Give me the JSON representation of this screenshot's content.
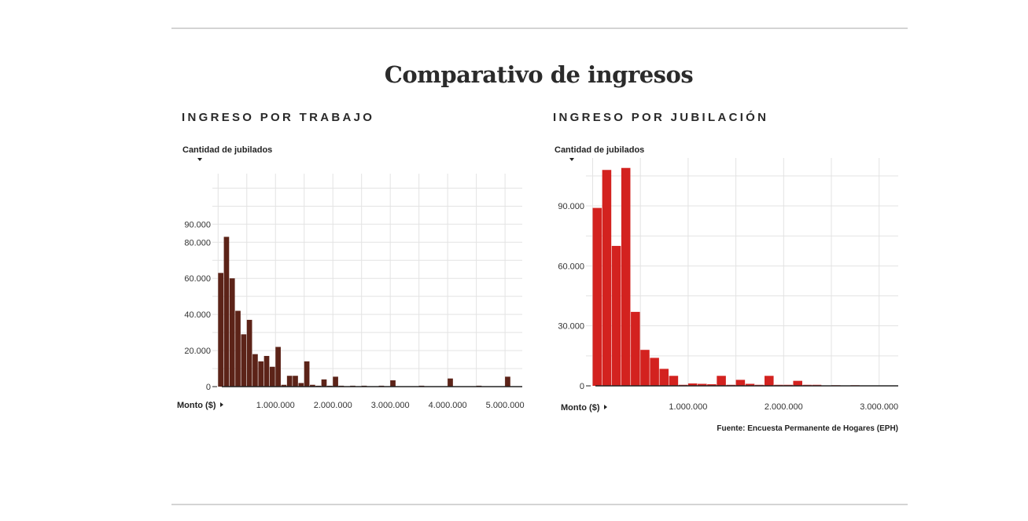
{
  "title": "Comparativo de ingresos",
  "source": "Fuente: Encuesta Permanente de Hogares (EPH)",
  "chart_data": [
    {
      "type": "bar",
      "title": "INGRESO POR TRABAJO",
      "ylabel": "Cantidad de jubilados",
      "xlabel": "Monto ($)",
      "color": "#5c2318",
      "xlim": [
        -100000,
        5300000
      ],
      "ylim": [
        0,
        118000
      ],
      "grid": true,
      "xticks": [
        {
          "value": 1000000,
          "label": "1.000.000"
        },
        {
          "value": 2000000,
          "label": "2.000.000"
        },
        {
          "value": 3000000,
          "label": "3.000.000"
        },
        {
          "value": 4000000,
          "label": "4.000.000"
        },
        {
          "value": 5000000,
          "label": "5.000.000"
        }
      ],
      "yticks": [
        {
          "value": 0,
          "label": "0"
        },
        {
          "value": 20000,
          "label": "20.000"
        },
        {
          "value": 40000,
          "label": "40.000"
        },
        {
          "value": 60000,
          "label": "60.000"
        },
        {
          "value": 80000,
          "label": "80.000"
        },
        {
          "value": 90000,
          "label": "90.000"
        }
      ],
      "bin_width": 100000,
      "bins": [
        {
          "x": 0,
          "value": 63000
        },
        {
          "x": 100000,
          "value": 83000
        },
        {
          "x": 200000,
          "value": 60000
        },
        {
          "x": 300000,
          "value": 42000
        },
        {
          "x": 400000,
          "value": 29000
        },
        {
          "x": 500000,
          "value": 37000
        },
        {
          "x": 600000,
          "value": 18000
        },
        {
          "x": 700000,
          "value": 14000
        },
        {
          "x": 800000,
          "value": 17000
        },
        {
          "x": 900000,
          "value": 11000
        },
        {
          "x": 1000000,
          "value": 22000
        },
        {
          "x": 1100000,
          "value": 1000
        },
        {
          "x": 1200000,
          "value": 6000
        },
        {
          "x": 1300000,
          "value": 6000
        },
        {
          "x": 1400000,
          "value": 2000
        },
        {
          "x": 1500000,
          "value": 14000
        },
        {
          "x": 1600000,
          "value": 1000
        },
        {
          "x": 1700000,
          "value": 500
        },
        {
          "x": 1800000,
          "value": 4000
        },
        {
          "x": 1900000,
          "value": 500
        },
        {
          "x": 2000000,
          "value": 5500
        },
        {
          "x": 2100000,
          "value": 500
        },
        {
          "x": 2300000,
          "value": 500
        },
        {
          "x": 2500000,
          "value": 500
        },
        {
          "x": 2800000,
          "value": 500
        },
        {
          "x": 3000000,
          "value": 3500
        },
        {
          "x": 3500000,
          "value": 500
        },
        {
          "x": 4000000,
          "value": 4500
        },
        {
          "x": 4500000,
          "value": 500
        },
        {
          "x": 5000000,
          "value": 5500
        }
      ]
    },
    {
      "type": "bar",
      "title": "INGRESO POR JUBILACIÓN",
      "ylabel": "Cantidad de jubilados",
      "xlabel": "Monto ($)",
      "color": "#d3221f",
      "xlim": [
        -70000,
        3200000
      ],
      "ylim": [
        0,
        114000
      ],
      "grid": true,
      "xticks": [
        {
          "value": 1000000,
          "label": "1.000.000"
        },
        {
          "value": 2000000,
          "label": "2.000.000"
        },
        {
          "value": 3000000,
          "label": "3.000.000"
        }
      ],
      "yticks": [
        {
          "value": 0,
          "label": "0"
        },
        {
          "value": 30000,
          "label": "30.000"
        },
        {
          "value": 60000,
          "label": "60.000"
        },
        {
          "value": 90000,
          "label": "90.000"
        }
      ],
      "bin_width": 100000,
      "bins": [
        {
          "x": 0,
          "value": 89000
        },
        {
          "x": 100000,
          "value": 108000
        },
        {
          "x": 200000,
          "value": 70000
        },
        {
          "x": 300000,
          "value": 109000
        },
        {
          "x": 400000,
          "value": 37000
        },
        {
          "x": 500000,
          "value": 18000
        },
        {
          "x": 600000,
          "value": 14000
        },
        {
          "x": 700000,
          "value": 8500
        },
        {
          "x": 800000,
          "value": 5000
        },
        {
          "x": 900000,
          "value": 500
        },
        {
          "x": 1000000,
          "value": 1200
        },
        {
          "x": 1100000,
          "value": 1000
        },
        {
          "x": 1200000,
          "value": 800
        },
        {
          "x": 1300000,
          "value": 5000
        },
        {
          "x": 1400000,
          "value": 500
        },
        {
          "x": 1500000,
          "value": 3000
        },
        {
          "x": 1600000,
          "value": 1000
        },
        {
          "x": 1700000,
          "value": 500
        },
        {
          "x": 1800000,
          "value": 5000
        },
        {
          "x": 1900000,
          "value": 500
        },
        {
          "x": 2000000,
          "value": 500
        },
        {
          "x": 2100000,
          "value": 2500
        },
        {
          "x": 2200000,
          "value": 500
        },
        {
          "x": 2300000,
          "value": 500
        },
        {
          "x": 2500000,
          "value": 300
        },
        {
          "x": 2700000,
          "value": 300
        }
      ]
    }
  ]
}
